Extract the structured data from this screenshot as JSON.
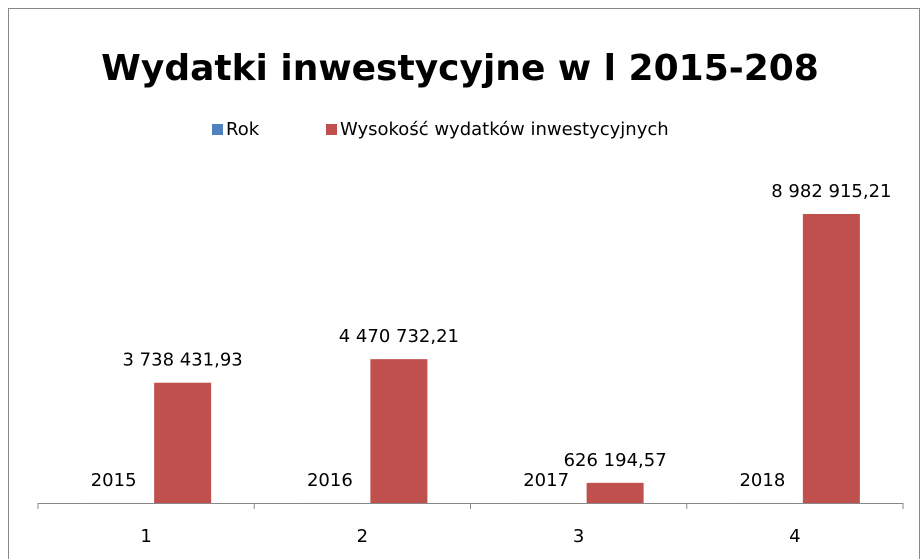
{
  "chart_data": {
    "type": "bar",
    "title": "Wydatki inwestycyjne w l 2015-208",
    "categories": [
      "1",
      "2",
      "3",
      "4"
    ],
    "series": [
      {
        "name": "Rok",
        "color": "#4f81bd",
        "values": [
          2015,
          2016,
          2017,
          2018
        ]
      },
      {
        "name": "Wysokość wydatków inwestycyjnych",
        "color": "#c0504d",
        "values": [
          3738431.93,
          4470732.21,
          626194.57,
          8982915.21
        ],
        "value_labels": [
          "3 738 431,93",
          "4 470 732,21",
          "626 194,57",
          "8 982 915,21"
        ]
      }
    ],
    "legend": "top"
  }
}
